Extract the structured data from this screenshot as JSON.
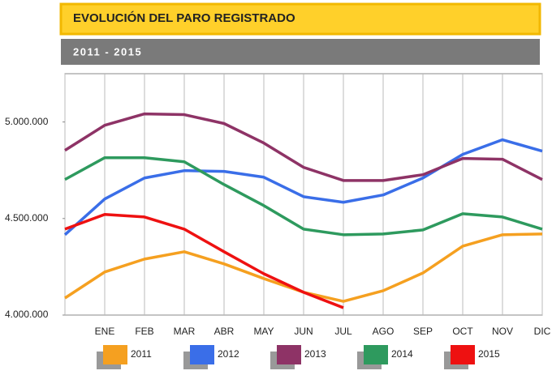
{
  "chart_data": {
    "type": "line",
    "title": "EVOLUCIÓN DEL PARO REGISTRADO",
    "subtitle": "2011 - 2015",
    "categories": [
      null,
      "ENE",
      "FEB",
      "MAR",
      "ABR",
      "MAY",
      "JUN",
      "JUL",
      "AGO",
      "SEP",
      "OCT",
      "NOV",
      "DIC"
    ],
    "series": [
      {
        "name": "2011",
        "color": "#f5a020",
        "values": [
          4088000,
          4223000,
          4290000,
          4328000,
          4265000,
          4189000,
          4118000,
          4071000,
          4126000,
          4218000,
          4357000,
          4416000,
          4420000
        ]
      },
      {
        "name": "2012",
        "color": "#3a6ee8",
        "values": [
          4416000,
          4601000,
          4710000,
          4748000,
          4744000,
          4714000,
          4613000,
          4584000,
          4622000,
          4710000,
          4832000,
          4908000,
          4849000
        ]
      },
      {
        "name": "2013",
        "color": "#8e3366",
        "values": [
          4853000,
          4983000,
          5042000,
          5038000,
          4992000,
          4891000,
          4765000,
          4697000,
          4697000,
          4727000,
          4811000,
          4807000,
          4702000
        ]
      },
      {
        "name": "2014",
        "color": "#2e9a5e",
        "values": [
          4702000,
          4815000,
          4815000,
          4794000,
          4676000,
          4567000,
          4445000,
          4416000,
          4420000,
          4441000,
          4525000,
          4508000,
          4445000
        ]
      },
      {
        "name": "2015",
        "color": "#ee1111",
        "values": [
          4445000,
          4521000,
          4508000,
          4445000,
          4328000,
          4214000,
          4118000,
          4038000,
          null,
          null,
          null,
          null,
          null
        ]
      }
    ],
    "ylim": [
      4000000,
      5250000
    ],
    "yticks": [
      {
        "value": 4000000,
        "label": "4.000.000"
      },
      {
        "value": 4500000,
        "label": "4.500.000"
      },
      {
        "value": 5000000,
        "label": "5.000.000"
      }
    ],
    "grid": "vertical"
  }
}
